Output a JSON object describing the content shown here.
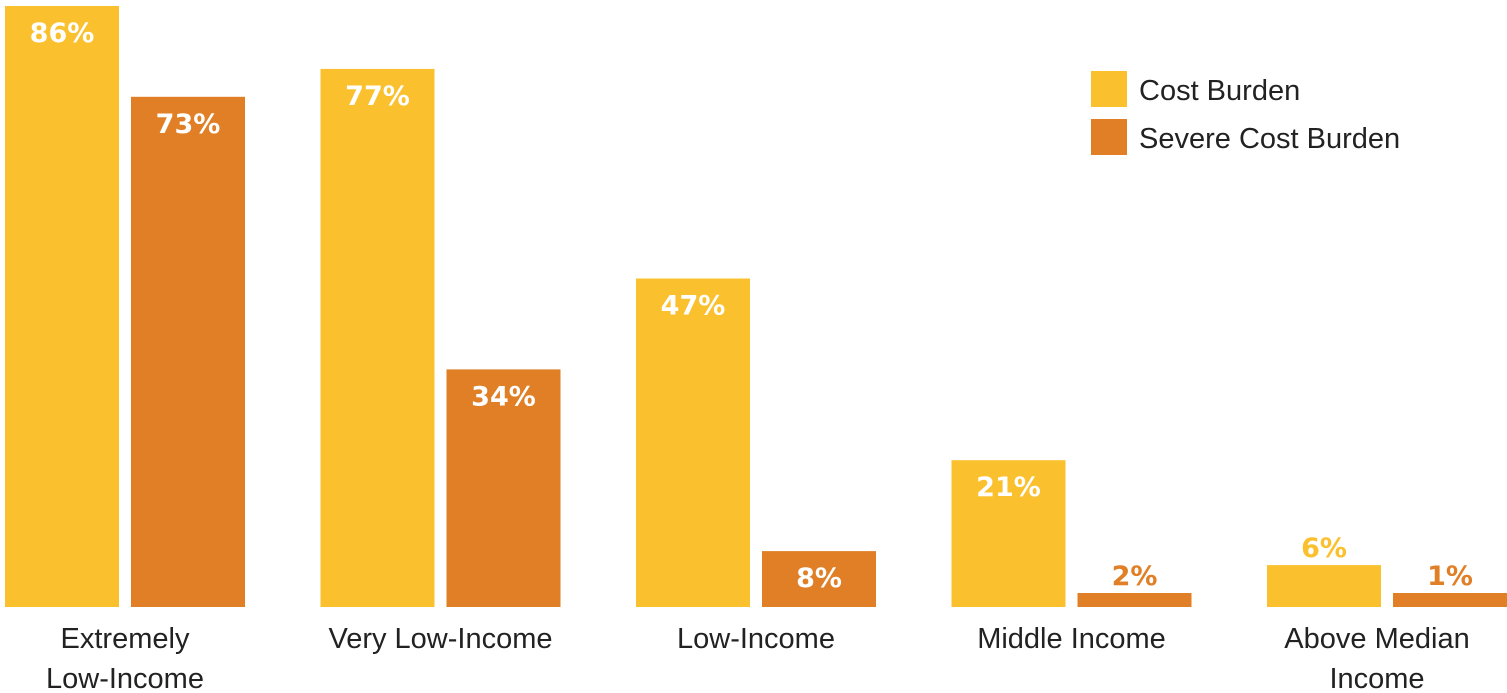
{
  "chart_data": {
    "type": "bar",
    "title": "",
    "xlabel": "",
    "ylabel": "",
    "ylim": [
      0,
      86
    ],
    "grid": false,
    "legend_position": "top-right",
    "categories": [
      [
        "Extremely",
        "Low-Income"
      ],
      [
        "Very Low-Income"
      ],
      [
        "Low-Income"
      ],
      [
        "Middle Income"
      ],
      [
        "Above Median",
        "Income"
      ]
    ],
    "series": [
      {
        "name": "Cost Burden",
        "color": "#FBC02D",
        "values": [
          86,
          77,
          47,
          21,
          6
        ],
        "labels": [
          "86%",
          "77%",
          "47%",
          "21%",
          "6%"
        ]
      },
      {
        "name": "Severe Cost Burden",
        "color": "#E07F26",
        "values": [
          73,
          34,
          8,
          2,
          1
        ],
        "labels": [
          "73%",
          "34%",
          "8%",
          "2%",
          "1%"
        ]
      }
    ]
  }
}
